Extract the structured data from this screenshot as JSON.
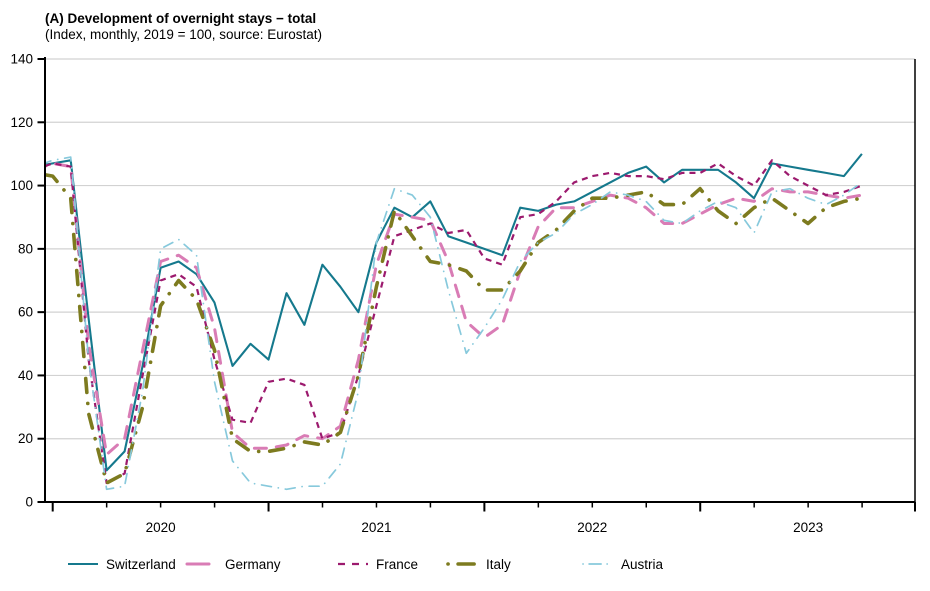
{
  "header": {
    "title": "(A) Development of overnight stays − total",
    "subtitle": "(Index, monthly, 2019 = 100, source: Eurostat)"
  },
  "colors": {
    "switzerland": "#15798d",
    "germany": "#d97cb5",
    "france": "#9c1a6e",
    "italy": "#7d7b1f",
    "austria": "#87c9dc",
    "gridline": "#d2d2d2",
    "axis": "#000000",
    "text": "#000000",
    "background": "#ffffff"
  },
  "chart_data": {
    "type": "line",
    "title": "(A) Development of overnight stays − total",
    "subtitle": "(Index, monthly, 2019 = 100, source: Eurostat)",
    "xlabel": "",
    "ylabel": "",
    "ylim": [
      0,
      140
    ],
    "yticks": [
      0,
      20,
      40,
      60,
      80,
      100,
      120,
      140
    ],
    "x_tick_years": [
      "2020",
      "2021",
      "2022",
      "2023"
    ],
    "grid": "horizontal",
    "legend_position": "bottom",
    "x": [
      "2019-12",
      "2020-01",
      "2020-02",
      "2020-03",
      "2020-04",
      "2020-05",
      "2020-06",
      "2020-07",
      "2020-08",
      "2020-09",
      "2020-10",
      "2020-11",
      "2020-12",
      "2021-01",
      "2021-02",
      "2021-03",
      "2021-04",
      "2021-05",
      "2021-06",
      "2021-07",
      "2021-08",
      "2021-09",
      "2021-10",
      "2021-11",
      "2021-12",
      "2022-01",
      "2022-02",
      "2022-03",
      "2022-04",
      "2022-05",
      "2022-06",
      "2022-07",
      "2022-08",
      "2022-09",
      "2022-10",
      "2022-11",
      "2022-12",
      "2023-01",
      "2023-02",
      "2023-03",
      "2023-04",
      "2023-05",
      "2023-06",
      "2023-07",
      "2023-08",
      "2023-09",
      "2023-10"
    ],
    "series": [
      {
        "name": "Switzerland",
        "color": "#15798d",
        "line_style": "solid",
        "values": [
          106,
          107,
          108,
          58,
          10,
          16,
          43,
          74,
          76,
          72,
          63,
          43,
          50,
          45,
          66,
          56,
          75,
          68,
          60,
          82,
          93,
          90,
          95,
          84,
          82,
          80,
          78,
          93,
          92,
          94,
          95,
          98,
          101,
          104,
          106,
          101,
          105,
          105,
          105,
          101,
          96,
          107,
          106,
          105,
          104,
          103,
          110
        ]
      },
      {
        "name": "Germany",
        "color": "#d97cb5",
        "line_style": "long-dash",
        "values": [
          105,
          107,
          106,
          50,
          15,
          20,
          48,
          76,
          78,
          74,
          55,
          22,
          17,
          17,
          18,
          21,
          20,
          24,
          45,
          75,
          91,
          90,
          89,
          76,
          57,
          52,
          56,
          73,
          87,
          93,
          93,
          95,
          97,
          96,
          93,
          88,
          88,
          91,
          94,
          96,
          95,
          99,
          98,
          98,
          97,
          96,
          97
        ]
      },
      {
        "name": "France",
        "color": "#9c1a6e",
        "line_style": "short-dash",
        "values": [
          105,
          107,
          106,
          45,
          6,
          9,
          40,
          70,
          72,
          68,
          45,
          26,
          25,
          38,
          39,
          37,
          20,
          22,
          40,
          62,
          84,
          86,
          88,
          85,
          86,
          77,
          75,
          90,
          91,
          95,
          101,
          103,
          104,
          103,
          103,
          102,
          104,
          104,
          107,
          103,
          100,
          108,
          103,
          100,
          97,
          98,
          100
        ]
      },
      {
        "name": "Italy",
        "color": "#7d7b1f",
        "line_style": "dash-dot-thick",
        "values": [
          104,
          103,
          96,
          28,
          6,
          9,
          30,
          62,
          70,
          64,
          48,
          20,
          16,
          16,
          17,
          19,
          18,
          22,
          40,
          68,
          92,
          84,
          76,
          75,
          73,
          67,
          67,
          73,
          82,
          86,
          92,
          96,
          96,
          97,
          98,
          94,
          94,
          99,
          92,
          88,
          93,
          96,
          92,
          88,
          93,
          95,
          96
        ]
      },
      {
        "name": "Austria",
        "color": "#87c9dc",
        "line_style": "dash-dot-thin",
        "values": [
          106,
          108,
          109,
          45,
          4,
          5,
          35,
          80,
          83,
          78,
          38,
          13,
          6,
          5,
          4,
          5,
          5,
          12,
          35,
          82,
          99,
          97,
          90,
          67,
          47,
          55,
          64,
          76,
          82,
          85,
          91,
          94,
          98,
          97,
          95,
          89,
          88,
          92,
          95,
          93,
          85,
          98,
          99,
          96,
          94,
          97,
          101
        ]
      }
    ],
    "legend": {
      "labels": [
        "Switzerland",
        "Germany",
        "France",
        "Italy",
        "Austria"
      ]
    }
  }
}
